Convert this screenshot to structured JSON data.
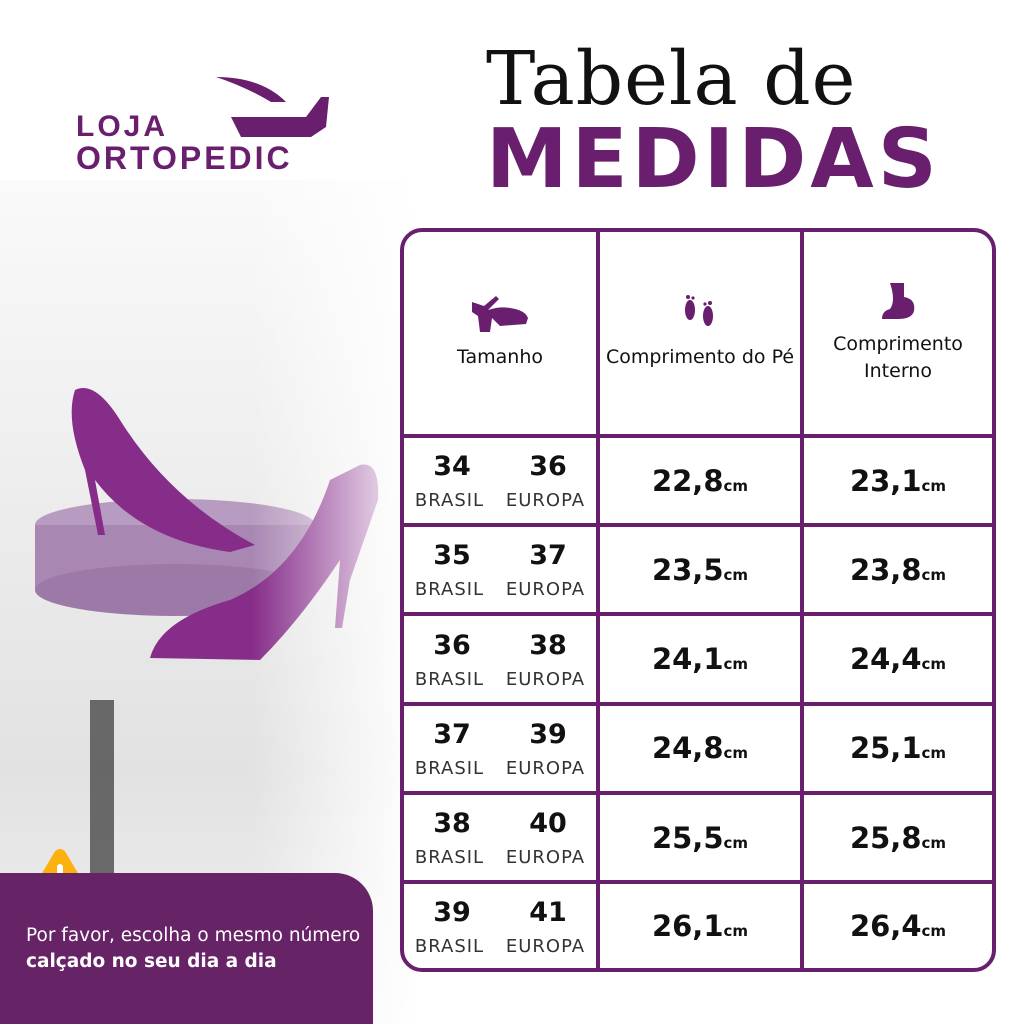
{
  "brand": {
    "logo_line1": "LOJA",
    "logo_line2": "ORTOPEDIC"
  },
  "title": {
    "line1": "Tabela de",
    "line2": "MEDIDAS"
  },
  "colors": {
    "accent": "#6a1f6e",
    "warning": "#fbb20e"
  },
  "table": {
    "headers": [
      {
        "label": "Tamanho",
        "icon": "sandal-icon"
      },
      {
        "label": "Comprimento do Pé",
        "icon": "footprints-icon"
      },
      {
        "label": "Comprimento Interno",
        "icon": "foot-icon"
      }
    ],
    "size_labels": {
      "br": "BRASIL",
      "eu": "EUROPA"
    },
    "unit": "cm",
    "rows": [
      {
        "br": "34",
        "eu": "36",
        "foot": "22,8",
        "inner": "23,1"
      },
      {
        "br": "35",
        "eu": "37",
        "foot": "23,5",
        "inner": "23,8"
      },
      {
        "br": "36",
        "eu": "38",
        "foot": "24,1",
        "inner": "24,4"
      },
      {
        "br": "37",
        "eu": "39",
        "foot": "24,8",
        "inner": "25,1"
      },
      {
        "br": "38",
        "eu": "40",
        "foot": "25,5",
        "inner": "25,8"
      },
      {
        "br": "39",
        "eu": "41",
        "foot": "26,1",
        "inner": "26,4"
      }
    ]
  },
  "notice": {
    "text_regular": "Por favor, escolha o mesmo número ",
    "text_bold": "calçado no seu dia a dia",
    "icon": "warning-icon"
  }
}
